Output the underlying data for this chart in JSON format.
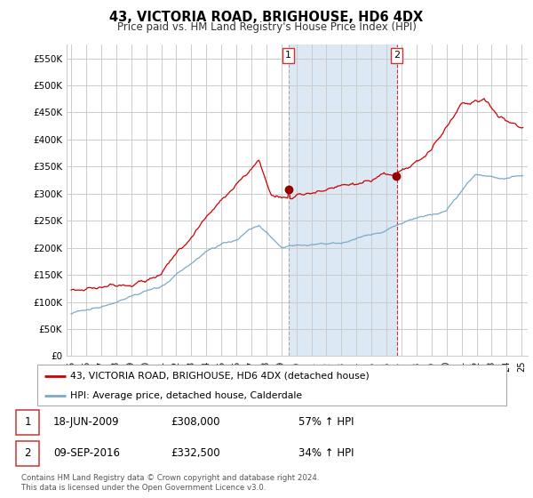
{
  "title": "43, VICTORIA ROAD, BRIGHOUSE, HD6 4DX",
  "subtitle": "Price paid vs. HM Land Registry's House Price Index (HPI)",
  "ylim": [
    0,
    575000
  ],
  "yticks": [
    0,
    50000,
    100000,
    150000,
    200000,
    250000,
    300000,
    350000,
    400000,
    450000,
    500000,
    550000
  ],
  "ytick_labels": [
    "£0",
    "£50K",
    "£100K",
    "£150K",
    "£200K",
    "£250K",
    "£300K",
    "£350K",
    "£400K",
    "£450K",
    "£500K",
    "£550K"
  ],
  "sale1_date": 2009.46,
  "sale1_price": 308000,
  "sale1_label": "1",
  "sale1_text": "18-JUN-2009",
  "sale1_price_text": "£308,000",
  "sale1_hpi_text": "57% ↑ HPI",
  "sale2_date": 2016.68,
  "sale2_price": 332500,
  "sale2_label": "2",
  "sale2_text": "09-SEP-2016",
  "sale2_price_text": "£332,500",
  "sale2_hpi_text": "34% ↑ HPI",
  "legend_property": "43, VICTORIA ROAD, BRIGHOUSE, HD6 4DX (detached house)",
  "legend_hpi": "HPI: Average price, detached house, Calderdale",
  "footer": "Contains HM Land Registry data © Crown copyright and database right 2024.\nThis data is licensed under the Open Government Licence v3.0.",
  "red_color": "#cc0000",
  "blue_color": "#7aaac8",
  "shading_color": "#dce9f5",
  "grid_color": "#cccccc",
  "background_color": "#ffffff"
}
